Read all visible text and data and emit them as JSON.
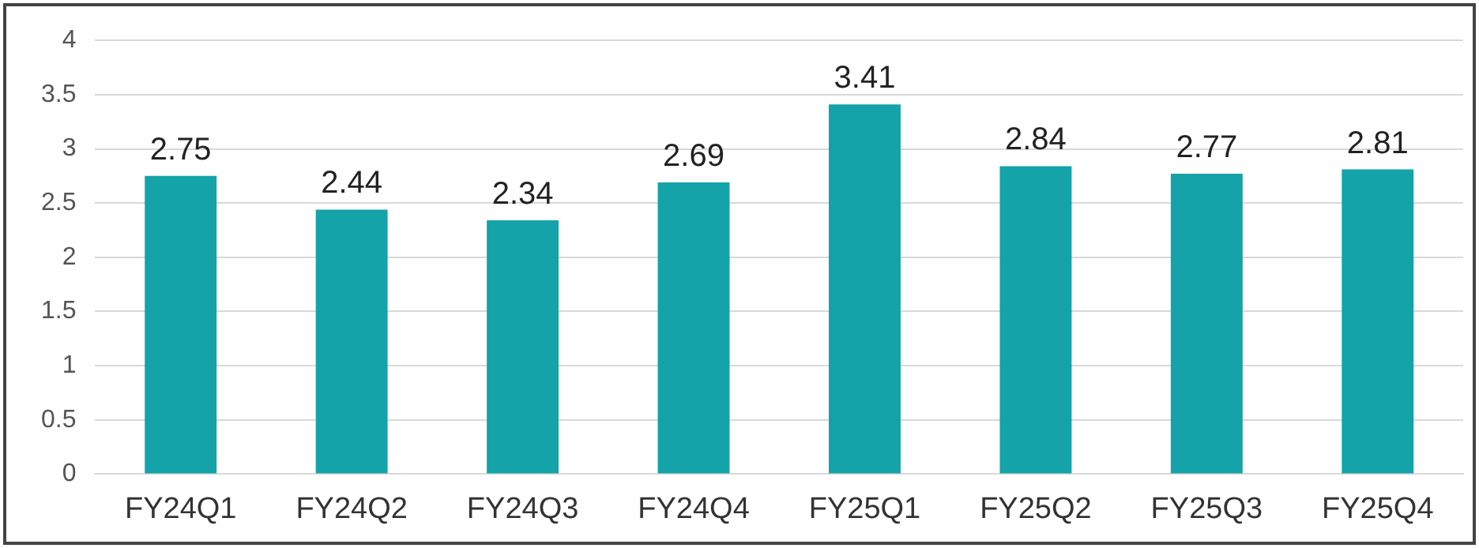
{
  "chart_data": {
    "type": "bar",
    "categories": [
      "FY24Q1",
      "FY24Q2",
      "FY24Q3",
      "FY24Q4",
      "FY25Q1",
      "FY25Q2",
      "FY25Q3",
      "FY25Q4"
    ],
    "values": [
      2.75,
      2.44,
      2.34,
      2.69,
      3.41,
      2.84,
      2.77,
      2.81
    ],
    "color": "#13a3a8",
    "ylim": [
      0,
      4
    ],
    "yticks": [
      0,
      0.5,
      1,
      1.5,
      2,
      2.5,
      3,
      3.5,
      4
    ],
    "grid": "y",
    "data_labels": true,
    "legend": false
  }
}
